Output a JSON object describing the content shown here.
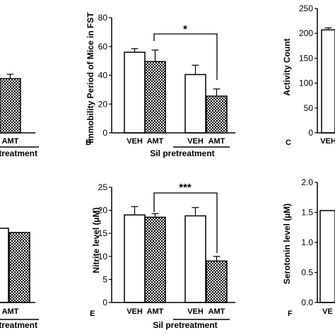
{
  "colors": {
    "axis": "#000000",
    "bar_white": "#ffffff",
    "hatch_fg": "#000000",
    "hatch_bg": "#ffffff"
  },
  "chart_data": [
    {
      "id": "A",
      "panel_label": "",
      "type": "bar",
      "categories": [
        "",
        "AMT"
      ],
      "values": [
        null,
        36.5
      ],
      "errors": [
        null,
        3
      ],
      "ylabel": "",
      "ylim": [
        0,
        80
      ],
      "group_label": "pretreatment",
      "significance": "",
      "fills": [
        "white",
        "hatch"
      ]
    },
    {
      "id": "B",
      "panel_label": "B",
      "type": "bar",
      "categories": [
        "VEH",
        "AMT",
        "VEH",
        "AMT"
      ],
      "values": [
        56,
        49.5,
        40.5,
        25.5
      ],
      "errors": [
        2.5,
        8,
        6.5,
        5
      ],
      "fills": [
        "white",
        "hatch",
        "white",
        "hatch"
      ],
      "ylabel": "Immobility Period of Mice in FST",
      "ylim": [
        0,
        80
      ],
      "yticks": [
        0,
        20,
        40,
        60,
        80
      ],
      "group_label": "Sil pretreatment",
      "significance": "*"
    },
    {
      "id": "C",
      "panel_label": "C",
      "type": "bar",
      "categories": [
        "VEH"
      ],
      "values": [
        207
      ],
      "errors": [
        4
      ],
      "fills": [
        "white"
      ],
      "ylabel": "Activity Count",
      "ylim": [
        0,
        250
      ],
      "yticks": [
        0,
        50,
        100,
        150,
        200,
        250
      ],
      "group_label": "",
      "significance": ""
    },
    {
      "id": "D",
      "panel_label": "",
      "type": "bar",
      "categories": [
        "",
        "AMT"
      ],
      "values": [
        null,
        null
      ],
      "errors": [
        null,
        null
      ],
      "fills": [
        "white",
        "hatch"
      ],
      "ylabel": "",
      "group_label": "pretreatment",
      "significance": ""
    },
    {
      "id": "E",
      "panel_label": "E",
      "type": "bar",
      "categories": [
        "VEH",
        "AMT",
        "VEH",
        "AMT"
      ],
      "values": [
        19,
        18.5,
        18.8,
        9
      ],
      "errors": [
        1.8,
        0.8,
        1.8,
        1
      ],
      "fills": [
        "white",
        "hatch",
        "white",
        "hatch"
      ],
      "ylabel": "Nitrite level (µM)",
      "ylim": [
        0,
        25
      ],
      "yticks": [
        0,
        5,
        10,
        15,
        20,
        25
      ],
      "group_label": "Sil pretreatment",
      "significance": "***"
    },
    {
      "id": "F",
      "panel_label": "F",
      "type": "bar",
      "categories": [
        "VE"
      ],
      "values": [
        1.53
      ],
      "errors": [
        0
      ],
      "fills": [
        "white"
      ],
      "ylabel": "Serotonin level (µM)",
      "ylim": [
        0,
        2.0
      ],
      "yticks": [
        "0.0",
        "0.5",
        "1.0",
        "1.5",
        "2.0"
      ],
      "group_label": "",
      "significance": ""
    }
  ]
}
